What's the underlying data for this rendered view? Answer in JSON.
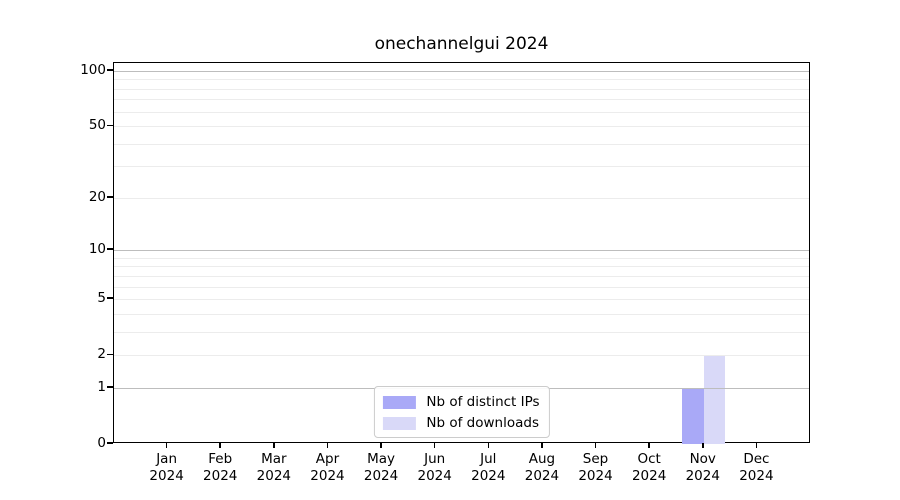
{
  "chart_data": {
    "type": "bar",
    "title": "onechannelgui 2024",
    "x_tick_months": [
      "Jan",
      "Feb",
      "Mar",
      "Apr",
      "May",
      "Jun",
      "Jul",
      "Aug",
      "Sep",
      "Oct",
      "Nov",
      "Dec"
    ],
    "x_tick_year": "2024",
    "series": [
      {
        "name": "Nb of distinct IPs",
        "color": "#a9a9f7",
        "values": [
          0,
          0,
          0,
          0,
          0,
          0,
          0,
          0,
          0,
          0,
          1,
          0
        ]
      },
      {
        "name": "Nb of downloads",
        "color": "#d9d9f8",
        "values": [
          0,
          0,
          0,
          0,
          0,
          0,
          0,
          0,
          0,
          0,
          2,
          0
        ]
      }
    ],
    "y_scale": "log1p",
    "ylim": [
      0,
      110.5
    ],
    "y_major_ticks": [
      0,
      1,
      2,
      5,
      10,
      20,
      50,
      100
    ],
    "y_major_gridlines": [
      1,
      10,
      100
    ],
    "y_minor_gridlines": [
      2,
      3,
      4,
      5,
      6,
      7,
      8,
      9,
      20,
      30,
      40,
      50,
      60,
      70,
      80,
      90
    ],
    "grid": {
      "major_color": "#bdbdbd",
      "minor_color": "#ececec",
      "on_top_of_bars": true
    },
    "bar_width_fraction": 0.4,
    "legend": {
      "location": "lower center",
      "entries": [
        "Nb of distinct IPs",
        "Nb of downloads"
      ]
    }
  }
}
